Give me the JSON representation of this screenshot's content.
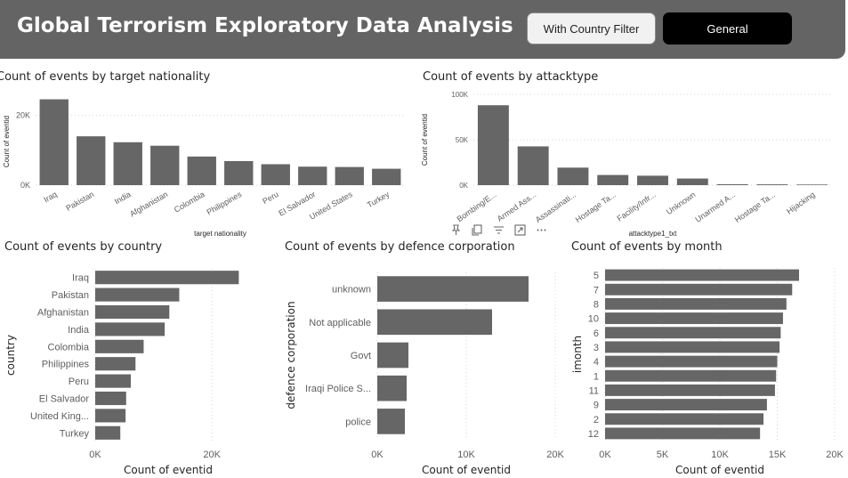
{
  "header": {
    "title": "Global Terrorism Exploratory Data Analysis",
    "buttons": {
      "country_filter": "With Country Filter",
      "general": "General"
    }
  },
  "toolbar": {
    "icons": [
      "pin-icon",
      "copy-icon",
      "filter-icon",
      "focus-mode-icon",
      "more-options-icon"
    ]
  },
  "colors": {
    "bar": "#666666",
    "header": "#646464"
  },
  "chart_data": [
    {
      "id": "nationality",
      "type": "bar",
      "orientation": "vertical",
      "title": "Count of events by target nationality",
      "xlabel": "target nationality",
      "ylabel": "Count of eventid",
      "categories": [
        "Iraq",
        "Pakistan",
        "India",
        "Afghanistan",
        "Colombia",
        "Philippines",
        "Peru",
        "El Salvador",
        "United States",
        "Turkey"
      ],
      "values": [
        24600,
        14000,
        12300,
        11300,
        8200,
        6900,
        6000,
        5300,
        5200,
        4700
      ],
      "ylim": [
        0,
        25000
      ],
      "ticks": [
        {
          "v": 0,
          "label": "0K"
        },
        {
          "v": 20000,
          "label": "20K"
        }
      ]
    },
    {
      "id": "attacktype",
      "type": "bar",
      "orientation": "vertical",
      "title": "Count of events by attacktype",
      "xlabel": "attacktype1_txt",
      "ylabel": "Count of eventid",
      "categories": [
        "Bombing/E...",
        "Armed Ass...",
        "Assassinati...",
        "Hostage Ta...",
        "Facility/Infr...",
        "Unknown",
        "Unarmed A...",
        "Hostage Ta...",
        "Hijacking"
      ],
      "values": [
        88000,
        42700,
        19300,
        11200,
        10400,
        7300,
        1000,
        900,
        700
      ],
      "ylim": [
        0,
        100000
      ],
      "ticks": [
        {
          "v": 0,
          "label": "0K"
        },
        {
          "v": 50000,
          "label": "50K"
        },
        {
          "v": 100000,
          "label": "100K"
        }
      ]
    },
    {
      "id": "country",
      "type": "bar",
      "orientation": "horizontal",
      "title": "Count of events by country",
      "xlabel": "Count of eventid",
      "ylabel": "country",
      "categories": [
        "Iraq",
        "Pakistan",
        "Afghanistan",
        "India",
        "Colombia",
        "Philippines",
        "Peru",
        "El Salvador",
        "United King...",
        "Turkey"
      ],
      "values": [
        24600,
        14400,
        12700,
        11900,
        8300,
        6900,
        6100,
        5300,
        5200,
        4300
      ],
      "xlim": [
        0,
        25000
      ],
      "ticks": [
        {
          "v": 0,
          "label": "0K"
        },
        {
          "v": 20000,
          "label": "20K"
        }
      ]
    },
    {
      "id": "corporation",
      "type": "bar",
      "orientation": "horizontal",
      "title": "Count of events by defence corporation",
      "xlabel": "Count of eventid",
      "ylabel": "defence corporation",
      "categories": [
        "unknown",
        "Not applicable",
        "Govt",
        "Iraqi Police S...",
        "police"
      ],
      "values": [
        17000,
        12900,
        3500,
        3300,
        3100
      ],
      "xlim": [
        0,
        20000
      ],
      "ticks": [
        {
          "v": 0,
          "label": "0K"
        },
        {
          "v": 10000,
          "label": "10K"
        },
        {
          "v": 20000,
          "label": "20K"
        }
      ]
    },
    {
      "id": "month",
      "type": "bar",
      "orientation": "horizontal",
      "title": "Count of events by month",
      "xlabel": "Count of eventid",
      "ylabel": "imonth",
      "categories": [
        "5",
        "7",
        "8",
        "10",
        "6",
        "3",
        "4",
        "1",
        "11",
        "9",
        "2",
        "12"
      ],
      "values": [
        16900,
        16300,
        15800,
        15500,
        15300,
        15200,
        15000,
        14900,
        14800,
        14100,
        13800,
        13500
      ],
      "xlim": [
        0,
        20000
      ],
      "ticks": [
        {
          "v": 0,
          "label": "0K"
        },
        {
          "v": 5000,
          "label": "5K"
        },
        {
          "v": 10000,
          "label": "10K"
        },
        {
          "v": 15000,
          "label": "15K"
        },
        {
          "v": 20000,
          "label": "20K"
        }
      ]
    }
  ]
}
